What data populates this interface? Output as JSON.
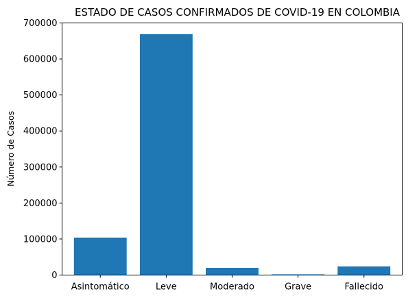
{
  "chart_data": {
    "type": "bar",
    "title": "ESTADO DE CASOS CONFIRMADOS DE COVID-19 EN COLOMBIA",
    "xlabel": "",
    "ylabel": "Número de Casos",
    "categories": [
      "Asintomático",
      "Leve",
      "Moderado",
      "Grave",
      "Fallecido"
    ],
    "values": [
      104000,
      669000,
      20000,
      2000,
      24000
    ],
    "ylim": [
      0,
      700000
    ],
    "yticks": [
      0,
      100000,
      200000,
      300000,
      400000,
      500000,
      600000,
      700000
    ],
    "ytick_labels": [
      "0",
      "100000",
      "200000",
      "300000",
      "400000",
      "500000",
      "600000",
      "700000"
    ],
    "bar_color": "#1f77b4",
    "grid": false,
    "legend": false
  }
}
